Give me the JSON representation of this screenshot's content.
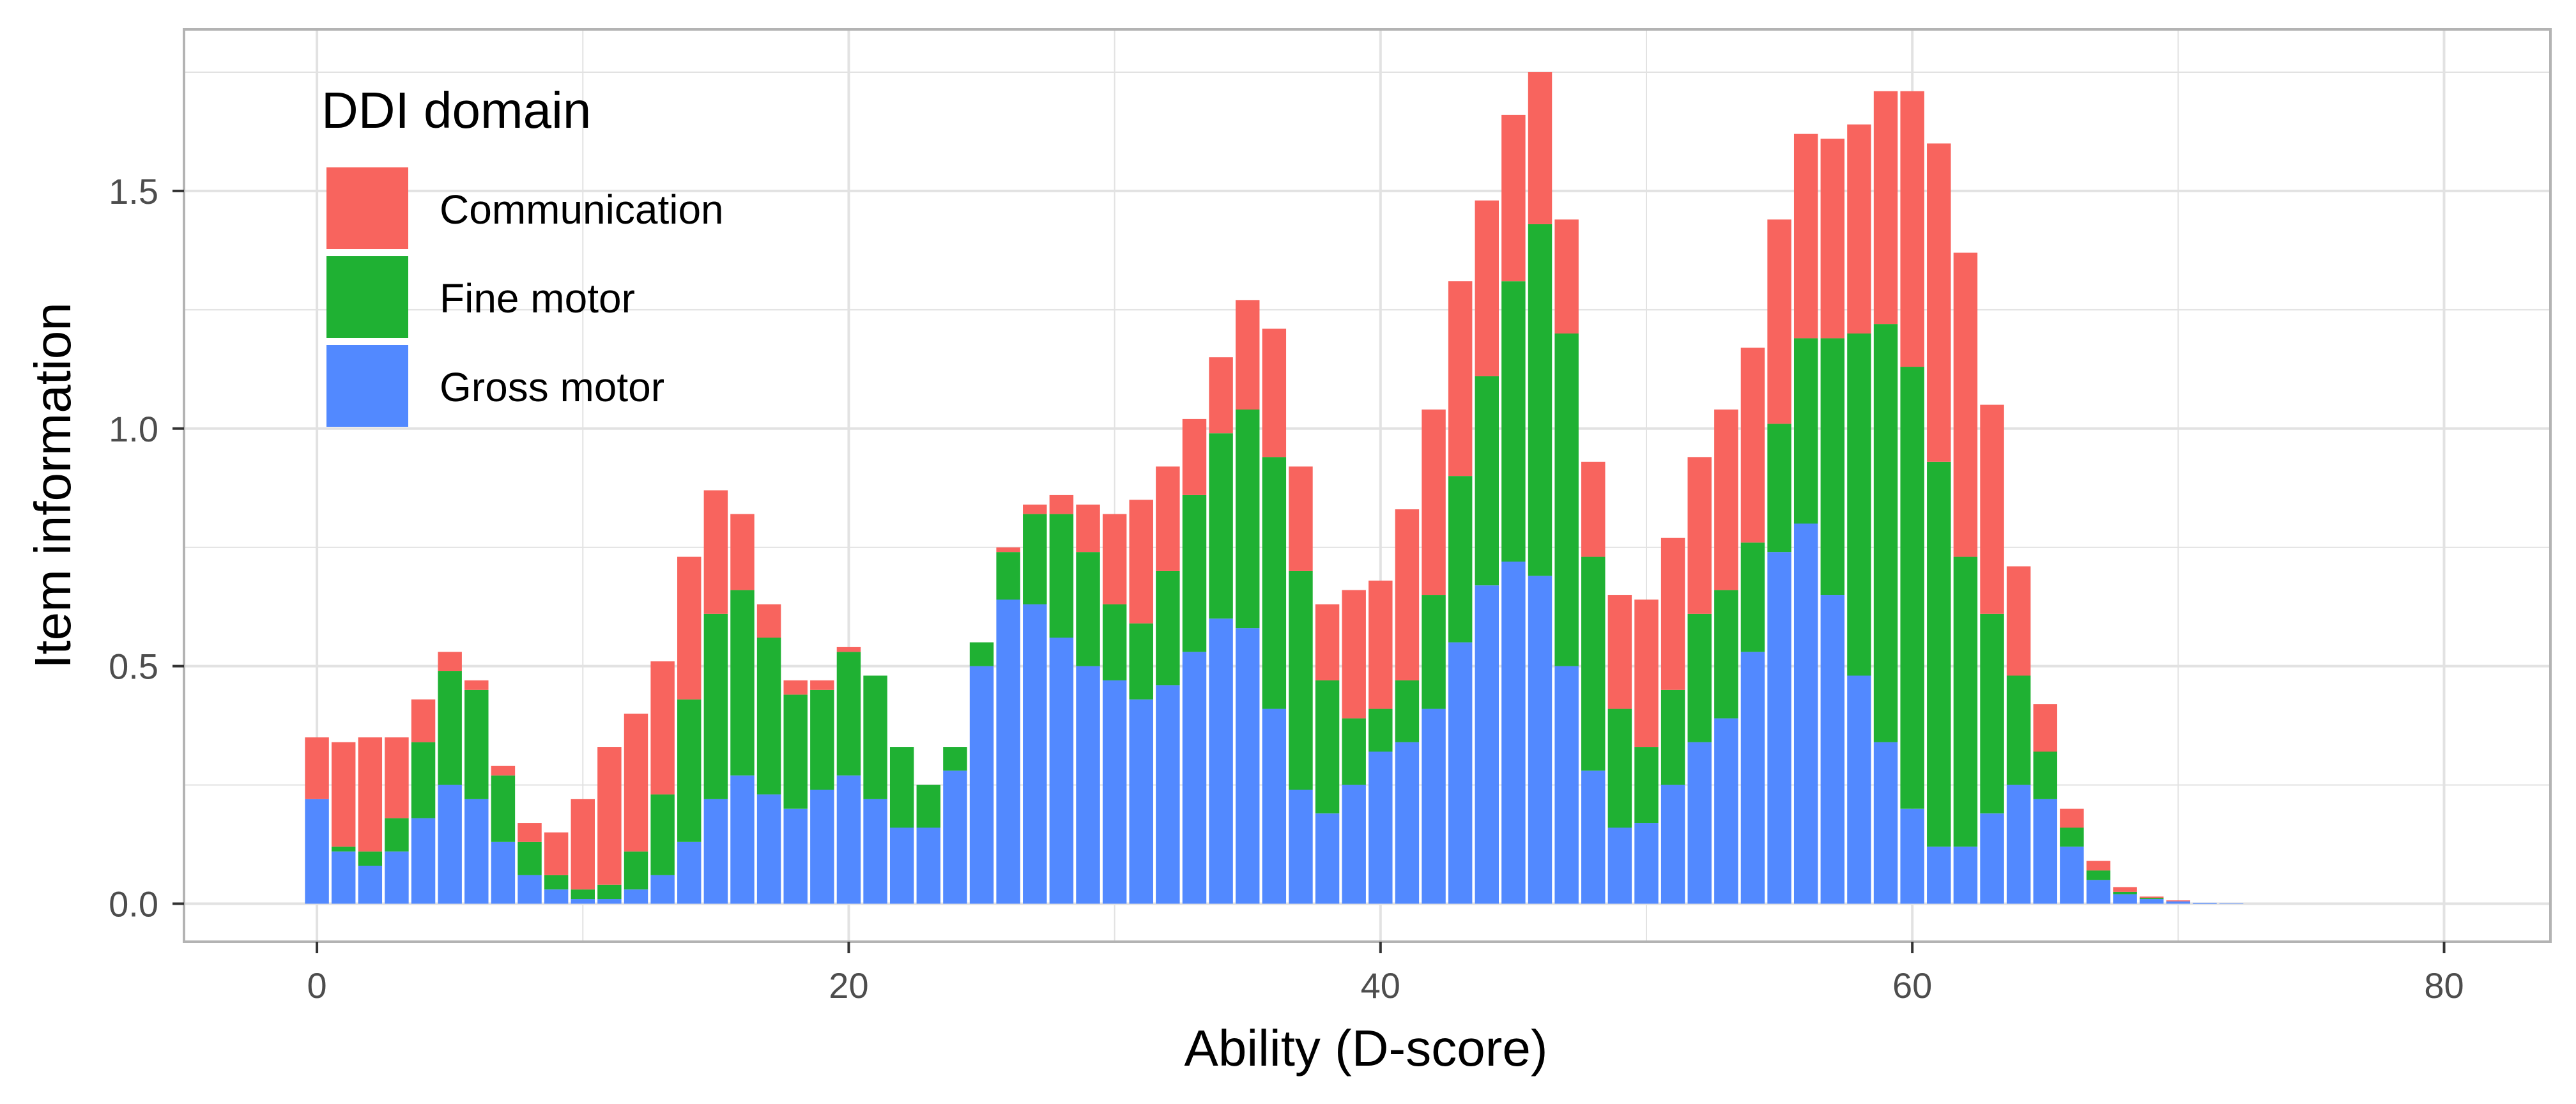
{
  "chart_data": {
    "type": "bar",
    "stacked": true,
    "xlabel": "Ability (D-score)",
    "ylabel": "Item information",
    "xlim": [
      -5,
      84
    ],
    "ylim": [
      -0.08,
      1.84
    ],
    "x_ticks": [
      0,
      20,
      40,
      60,
      80
    ],
    "x_tick_labels": [
      "0",
      "20",
      "40",
      "60",
      "80"
    ],
    "y_ticks": [
      0.0,
      0.5,
      1.0,
      1.5
    ],
    "y_tick_labels": [
      "0.0",
      "0.5",
      "1.0",
      "1.5"
    ],
    "grid": true,
    "legend": {
      "title": "DDI domain",
      "position": "top-left",
      "entries": [
        "Communication",
        "Fine motor",
        "Gross motor"
      ]
    },
    "colors": {
      "Communication": "#f8645e",
      "Fine motor": "#1fb133",
      "Gross motor": "#5289ff",
      "panel_border": "#b3b3b3",
      "grid": "#e2e2e2"
    },
    "x": [
      0,
      1,
      2,
      3,
      4,
      5,
      6,
      7,
      8,
      9,
      10,
      11,
      12,
      13,
      14,
      15,
      16,
      17,
      18,
      19,
      20,
      21,
      22,
      23,
      24,
      25,
      26,
      27,
      28,
      29,
      30,
      31,
      32,
      33,
      34,
      35,
      36,
      37,
      38,
      39,
      40,
      41,
      42,
      43,
      44,
      45,
      46,
      47,
      48,
      49,
      50,
      51,
      52,
      53,
      54,
      55,
      56,
      57,
      58,
      59,
      60,
      61,
      62,
      63,
      64,
      65,
      66,
      67,
      68,
      69,
      70,
      71,
      72,
      73
    ],
    "series": [
      {
        "name": "Gross motor",
        "values": [
          0.22,
          0.11,
          0.08,
          0.11,
          0.18,
          0.25,
          0.22,
          0.13,
          0.06,
          0.03,
          0.01,
          0.01,
          0.03,
          0.06,
          0.13,
          0.22,
          0.27,
          0.23,
          0.2,
          0.24,
          0.27,
          0.22,
          0.16,
          0.16,
          0.28,
          0.5,
          0.64,
          0.63,
          0.56,
          0.5,
          0.47,
          0.43,
          0.46,
          0.53,
          0.6,
          0.58,
          0.41,
          0.24,
          0.19,
          0.25,
          0.32,
          0.34,
          0.41,
          0.55,
          0.67,
          0.72,
          0.69,
          0.5,
          0.28,
          0.16,
          0.17,
          0.25,
          0.34,
          0.39,
          0.53,
          0.74,
          0.8,
          0.65,
          0.48,
          0.34,
          0.2,
          0.12,
          0.12,
          0.19,
          0.25,
          0.22,
          0.12,
          0.05,
          0.02,
          0.01,
          0.005,
          0.002,
          0.001,
          0.0
        ]
      },
      {
        "name": "Fine motor",
        "values": [
          0.0,
          0.01,
          0.03,
          0.07,
          0.16,
          0.24,
          0.23,
          0.14,
          0.07,
          0.03,
          0.02,
          0.03,
          0.08,
          0.17,
          0.3,
          0.39,
          0.39,
          0.33,
          0.24,
          0.21,
          0.26,
          0.26,
          0.17,
          0.09,
          0.05,
          0.05,
          0.1,
          0.19,
          0.26,
          0.24,
          0.16,
          0.16,
          0.24,
          0.33,
          0.39,
          0.46,
          0.53,
          0.46,
          0.28,
          0.14,
          0.09,
          0.13,
          0.24,
          0.35,
          0.44,
          0.59,
          0.74,
          0.7,
          0.45,
          0.25,
          0.16,
          0.2,
          0.27,
          0.27,
          0.23,
          0.27,
          0.39,
          0.54,
          0.72,
          0.88,
          0.93,
          0.81,
          0.61,
          0.42,
          0.23,
          0.1,
          0.04,
          0.02,
          0.005,
          0.002,
          0.0,
          0.0,
          0.0,
          0.0
        ]
      },
      {
        "name": "Communication",
        "values": [
          0.13,
          0.22,
          0.24,
          0.17,
          0.09,
          0.04,
          0.02,
          0.02,
          0.04,
          0.09,
          0.19,
          0.29,
          0.29,
          0.28,
          0.3,
          0.26,
          0.16,
          0.07,
          0.03,
          0.02,
          0.01,
          0.0,
          0.0,
          0.0,
          0.0,
          0.0,
          0.01,
          0.02,
          0.04,
          0.1,
          0.19,
          0.26,
          0.22,
          0.16,
          0.16,
          0.23,
          0.27,
          0.22,
          0.16,
          0.27,
          0.27,
          0.36,
          0.39,
          0.41,
          0.37,
          0.35,
          0.32,
          0.24,
          0.2,
          0.24,
          0.31,
          0.32,
          0.33,
          0.38,
          0.41,
          0.43,
          0.43,
          0.42,
          0.44,
          0.49,
          0.58,
          0.67,
          0.64,
          0.44,
          0.23,
          0.1,
          0.04,
          0.02,
          0.01,
          0.003,
          0.002,
          0.0,
          0.0,
          0.0
        ]
      }
    ]
  }
}
